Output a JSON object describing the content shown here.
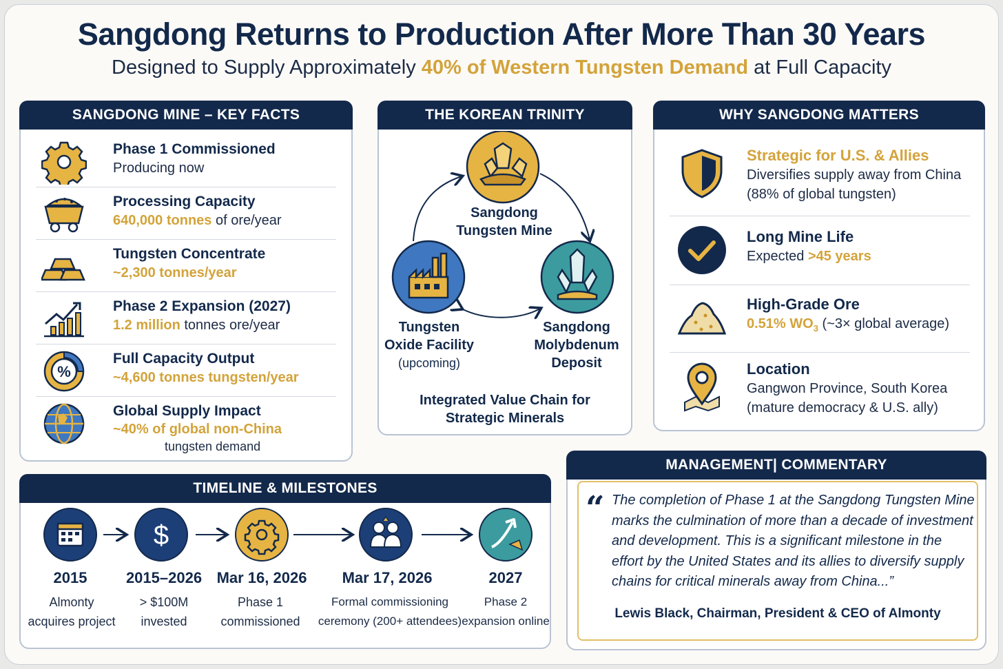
{
  "title": "Sangdong Returns to Production After More Than 30 Years",
  "subtitle": {
    "pre": "Designed to Supply Approximately ",
    "highlight": "40% of Western Tungsten Demand",
    "post": " at Full Capacity"
  },
  "colors": {
    "navy": "#13294b",
    "gold": "#d3a33a",
    "teal": "#3c9b9e",
    "blue": "#3f78c0"
  },
  "key_facts": {
    "header": "SANGDONG MINE – KEY FACTS",
    "items": [
      {
        "icon": "gear-icon",
        "title": "Phase 1 Commissioned",
        "value": "",
        "rest": "Producing now"
      },
      {
        "icon": "mine-cart-icon",
        "title": "Processing Capacity",
        "value": "640,000 tonnes",
        "rest": " of ore/year"
      },
      {
        "icon": "gold-bars-icon",
        "title": "Tungsten Concentrate",
        "value": "~2,300 tonnes/year",
        "rest": ""
      },
      {
        "icon": "growth-chart-icon",
        "title": "Phase 2 Expansion (2027)",
        "value": "1.2 million",
        "rest": " tonnes ore/year"
      },
      {
        "icon": "percent-gauge-icon",
        "title": "Full Capacity Output",
        "value": "~4,600 tonnes tungsten/year",
        "rest": ""
      },
      {
        "icon": "globe-icon",
        "title": "Global Supply Impact",
        "value": "~40% of global non-China",
        "rest": "tungsten demand"
      }
    ]
  },
  "trinity": {
    "header": "THE KOREAN TRINITY",
    "mine": "Sangdong Tungsten Mine",
    "oxide_line1": "Tungsten",
    "oxide_line2": "Oxide Facility",
    "oxide_sub": "(upcoming)",
    "moly_line1": "Sangdong",
    "moly_line2": "Molybdenum",
    "moly_line3": "Deposit",
    "footer_line1": "Integrated Value Chain for",
    "footer_line2": "Strategic Minerals"
  },
  "why": {
    "header": "WHY SANGDONG MATTERS",
    "strategic": {
      "title": "Strategic for U.S. & Allies",
      "line1": "Diversifies supply away from China",
      "line2": "(88% of global tungsten)"
    },
    "life": {
      "title": "Long Mine Life",
      "pre": "Expected ",
      "value": ">45 years"
    },
    "grade": {
      "title": "High-Grade Ore",
      "value": "0.51% WO",
      "subscript": "3",
      "rest": " (~3× global average)"
    },
    "location": {
      "title": "Location",
      "line1": "Gangwon Province, South Korea",
      "line2": "(mature democracy & U.S. ally)"
    }
  },
  "timeline": {
    "header": "TIMELINE  &  MILESTONES",
    "items": [
      {
        "icon": "calendar-icon",
        "year": "2015",
        "line1": "Almonty",
        "line2": "acquires project"
      },
      {
        "icon": "dollar-icon",
        "year": "2015–2026",
        "line1": "> $100M",
        "line2": "invested"
      },
      {
        "icon": "gear-icon",
        "year": "Mar 16, 2026",
        "line1": "Phase 1",
        "line2": "commissioned"
      },
      {
        "icon": "people-icon",
        "year": "Mar 17, 2026",
        "line1": "Formal commissioning",
        "line2": "ceremony (200+ attendees)"
      },
      {
        "icon": "growth-arrow-icon",
        "year": "2027",
        "line1": "Phase 2",
        "line2": "expansion online"
      }
    ]
  },
  "commentary": {
    "header": "MANAGEMENT| COMMENTARY",
    "quote": "The completion of Phase 1 at the Sangdong Tungsten Mine marks the culmination of more than a decade of investment and development. This is a significant milestone in the effort by the United States and its allies to diversify supply chains for critical minerals away from China...”",
    "attribution": "Lewis Black, Chairman, President & CEO of Almonty"
  }
}
